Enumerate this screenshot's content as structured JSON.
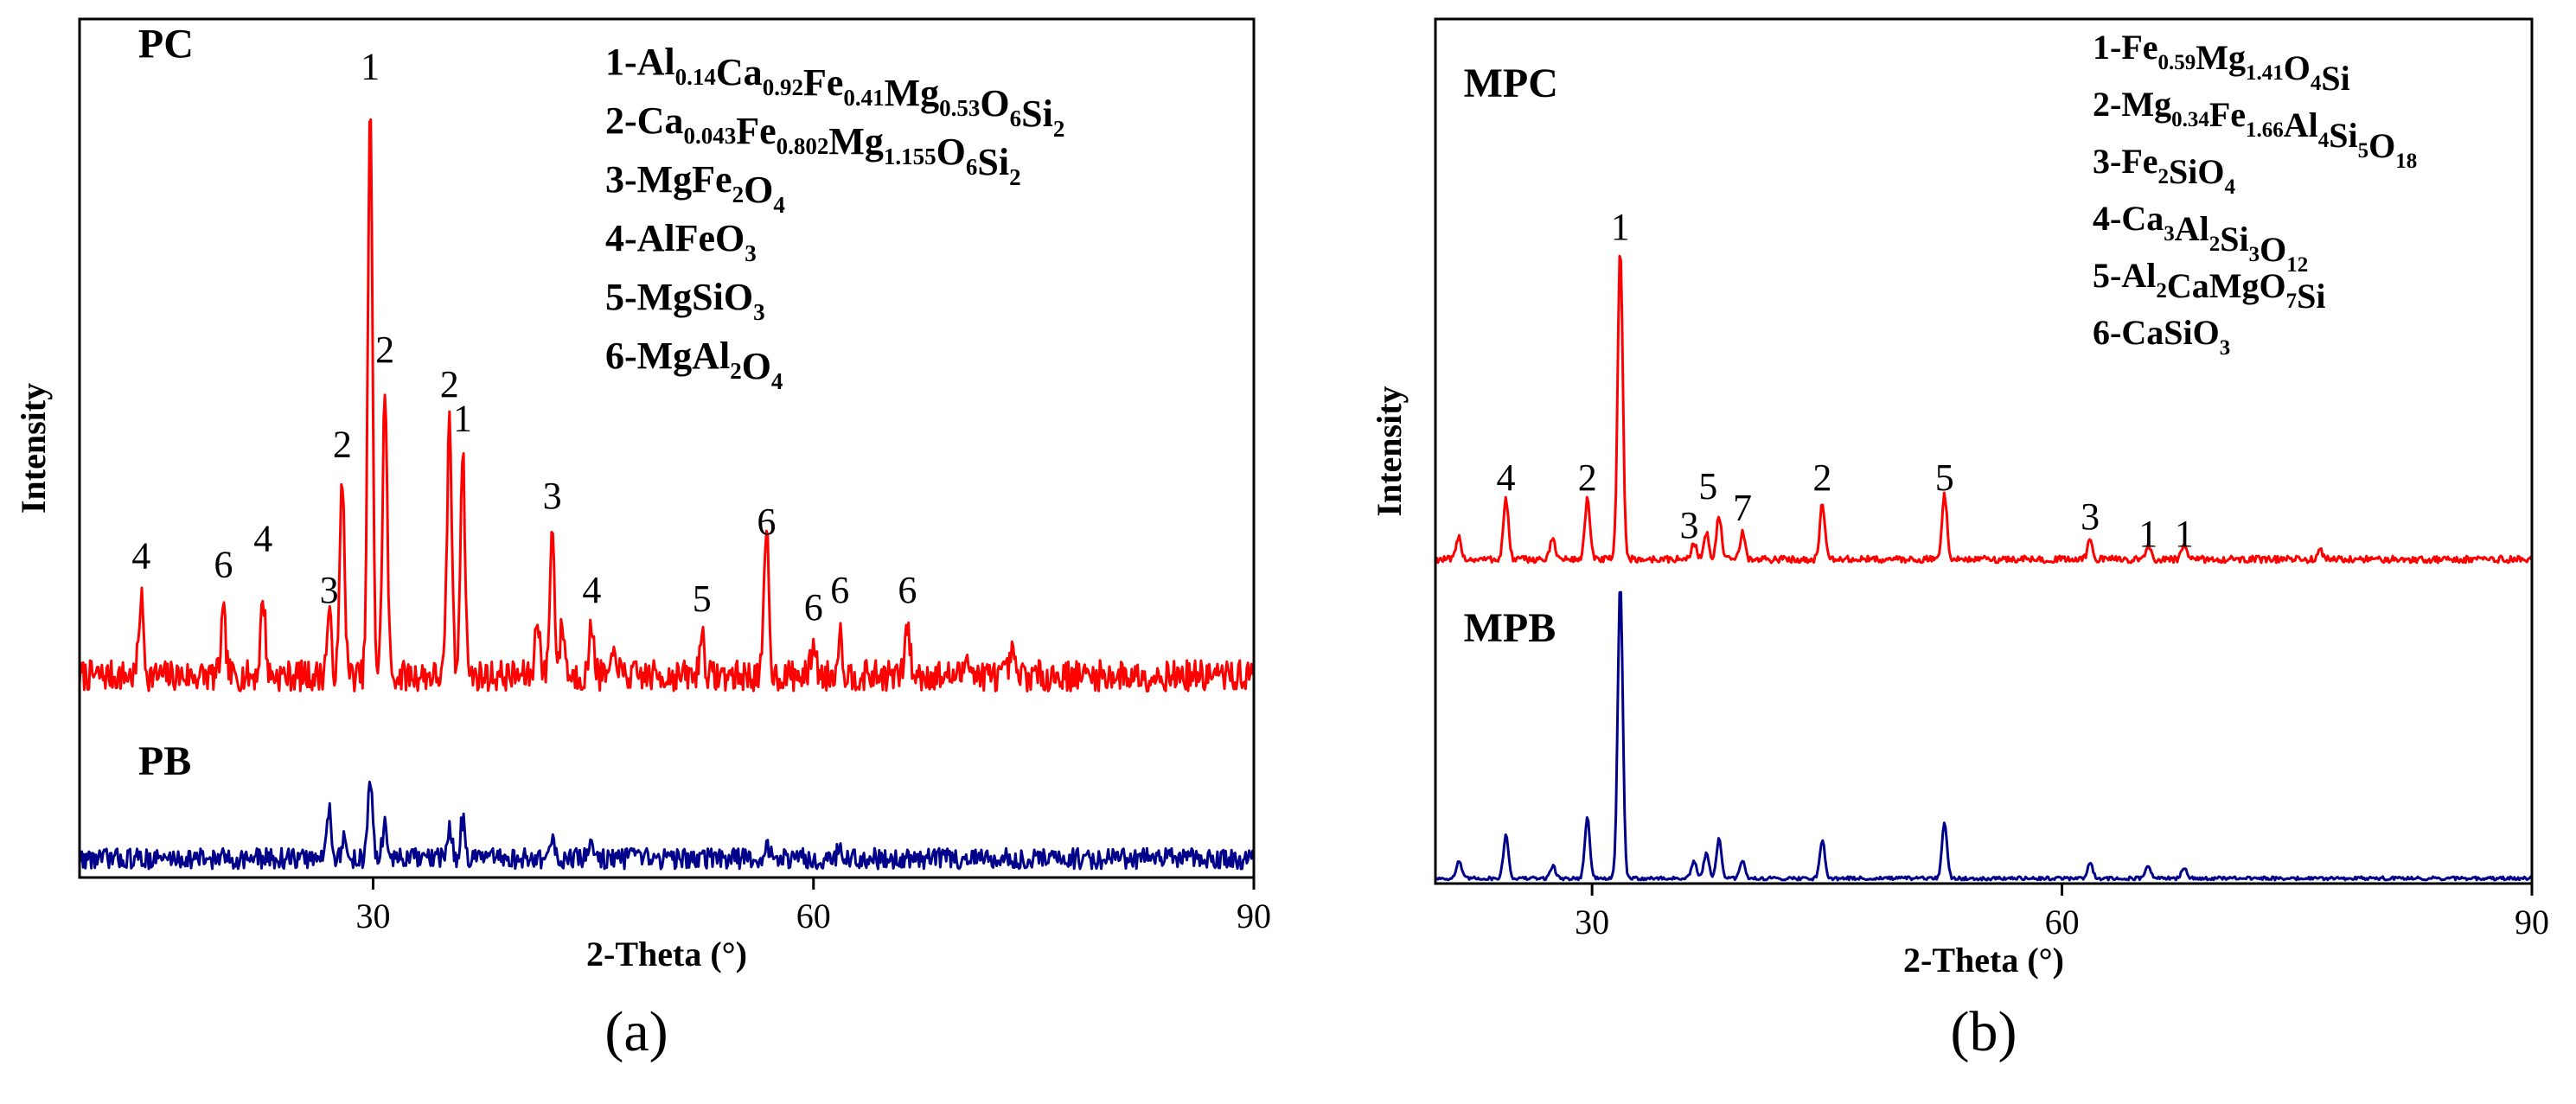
{
  "chart_data": [
    {
      "type": "line",
      "panel_label": "(a)",
      "xlabel": "2-Theta (°)",
      "ylabel": "Intensity",
      "xlim": [
        10,
        90
      ],
      "ylim": [
        0,
        1
      ],
      "xticks": [
        30,
        60,
        90
      ],
      "grid": false,
      "series": [
        {
          "name": "PC",
          "color": "#ff0000",
          "baseline": 0.235,
          "noise": 0.018,
          "peaks": [
            {
              "x": 14.2,
              "h": 0.09
            },
            {
              "x": 19.8,
              "h": 0.07
            },
            {
              "x": 22.5,
              "h": 0.09
            },
            {
              "x": 27.0,
              "h": 0.07
            },
            {
              "x": 27.9,
              "h": 0.23
            },
            {
              "x": 29.8,
              "h": 0.66
            },
            {
              "x": 30.8,
              "h": 0.33
            },
            {
              "x": 35.2,
              "h": 0.3
            },
            {
              "x": 36.1,
              "h": 0.26
            },
            {
              "x": 41.2,
              "h": 0.07
            },
            {
              "x": 42.2,
              "h": 0.17
            },
            {
              "x": 42.9,
              "h": 0.06
            },
            {
              "x": 44.9,
              "h": 0.06
            },
            {
              "x": 46.5,
              "h": 0.03
            },
            {
              "x": 52.4,
              "h": 0.05
            },
            {
              "x": 56.8,
              "h": 0.17
            },
            {
              "x": 60.0,
              "h": 0.04
            },
            {
              "x": 61.8,
              "h": 0.05
            },
            {
              "x": 66.4,
              "h": 0.06
            },
            {
              "x": 70.5,
              "h": 0.03
            },
            {
              "x": 73.5,
              "h": 0.025
            }
          ]
        },
        {
          "name": "PB",
          "color": "#00008b",
          "baseline": 0.022,
          "noise": 0.012,
          "peaks": [
            {
              "x": 27.0,
              "h": 0.06
            },
            {
              "x": 28.0,
              "h": 0.02
            },
            {
              "x": 29.8,
              "h": 0.09
            },
            {
              "x": 30.8,
              "h": 0.04
            },
            {
              "x": 35.2,
              "h": 0.035
            },
            {
              "x": 36.1,
              "h": 0.045
            },
            {
              "x": 42.2,
              "h": 0.02
            },
            {
              "x": 44.9,
              "h": 0.02
            },
            {
              "x": 56.8,
              "h": 0.015
            },
            {
              "x": 61.8,
              "h": 0.012
            }
          ]
        }
      ],
      "curve_labels": [
        {
          "text": "PC",
          "x": 14.0,
          "y": 0.955
        },
        {
          "text": "PB",
          "x": 14.0,
          "y": 0.12
        }
      ],
      "peak_labels": [
        {
          "text": "4",
          "x": 14.2,
          "y": 0.36
        },
        {
          "text": "6",
          "x": 19.8,
          "y": 0.35
        },
        {
          "text": "4",
          "x": 22.5,
          "y": 0.38
        },
        {
          "text": "3",
          "x": 27.0,
          "y": 0.32
        },
        {
          "text": "2",
          "x": 27.9,
          "y": 0.49
        },
        {
          "text": "1",
          "x": 29.8,
          "y": 0.93
        },
        {
          "text": "2",
          "x": 30.8,
          "y": 0.6
        },
        {
          "text": "2",
          "x": 35.2,
          "y": 0.56
        },
        {
          "text": "1",
          "x": 36.1,
          "y": 0.52
        },
        {
          "text": "3",
          "x": 42.2,
          "y": 0.43
        },
        {
          "text": "4",
          "x": 44.9,
          "y": 0.32
        },
        {
          "text": "5",
          "x": 52.4,
          "y": 0.31
        },
        {
          "text": "6",
          "x": 56.8,
          "y": 0.4
        },
        {
          "text": "6",
          "x": 60.0,
          "y": 0.3
        },
        {
          "text": "6",
          "x": 61.8,
          "y": 0.32
        },
        {
          "text": "6",
          "x": 66.4,
          "y": 0.32
        }
      ],
      "legend_position": "top-right",
      "legend": [
        {
          "text": "1-Al0.14Ca0.92Fe0.41Mg0.53O6Si2",
          "parts": [
            [
              "1-Al",
              ""
            ],
            [
              "0.14",
              "s"
            ],
            [
              "Ca",
              ""
            ],
            [
              "0.92",
              "s"
            ],
            [
              "Fe",
              ""
            ],
            [
              "0.41",
              "s"
            ],
            [
              "Mg",
              ""
            ],
            [
              "0.53",
              "s"
            ],
            [
              "O",
              ""
            ],
            [
              "6",
              "s"
            ],
            [
              "Si",
              ""
            ],
            [
              "2",
              "s"
            ]
          ]
        },
        {
          "text": "2-Ca0.043Fe0.802Mg1.155O6Si2",
          "parts": [
            [
              "2-Ca",
              ""
            ],
            [
              "0.043",
              "s"
            ],
            [
              "Fe",
              ""
            ],
            [
              "0.802",
              "s"
            ],
            [
              "Mg",
              ""
            ],
            [
              "1.155",
              "s"
            ],
            [
              "O",
              ""
            ],
            [
              "6",
              "s"
            ],
            [
              "Si",
              ""
            ],
            [
              "2",
              "s"
            ]
          ]
        },
        {
          "text": "3-MgFe2O4",
          "parts": [
            [
              "3-MgFe",
              ""
            ],
            [
              "2",
              "s"
            ],
            [
              "O",
              ""
            ],
            [
              "4",
              "s"
            ]
          ]
        },
        {
          "text": "4-AlFeO3",
          "parts": [
            [
              "4-AlFeO",
              ""
            ],
            [
              "3",
              "s"
            ]
          ]
        },
        {
          "text": "5-MgSiO3",
          "parts": [
            [
              "5-MgSiO",
              ""
            ],
            [
              "3",
              "s"
            ]
          ]
        },
        {
          "text": "6-MgAl2O4",
          "parts": [
            [
              "6-MgAl",
              ""
            ],
            [
              "2",
              "s"
            ],
            [
              "O",
              ""
            ],
            [
              "4",
              "s"
            ]
          ]
        }
      ]
    },
    {
      "type": "line",
      "panel_label": "(b)",
      "xlabel": "2-Theta (°)",
      "ylabel": "Intensity",
      "xlim": [
        20,
        90
      ],
      "ylim": [
        0,
        1
      ],
      "xticks": [
        30,
        60,
        90
      ],
      "grid": false,
      "series": [
        {
          "name": "MPC",
          "color": "#ff0000",
          "baseline": 0.375,
          "noise": 0.004,
          "peaks": [
            {
              "x": 21.5,
              "h": 0.025
            },
            {
              "x": 24.5,
              "h": 0.07
            },
            {
              "x": 27.5,
              "h": 0.025
            },
            {
              "x": 29.7,
              "h": 0.07
            },
            {
              "x": 31.8,
              "h": 0.36
            },
            {
              "x": 36.5,
              "h": 0.02
            },
            {
              "x": 37.3,
              "h": 0.03
            },
            {
              "x": 38.1,
              "h": 0.05
            },
            {
              "x": 39.6,
              "h": 0.03
            },
            {
              "x": 44.7,
              "h": 0.065
            },
            {
              "x": 52.5,
              "h": 0.075
            },
            {
              "x": 61.8,
              "h": 0.025
            },
            {
              "x": 65.5,
              "h": 0.015
            },
            {
              "x": 67.8,
              "h": 0.015
            },
            {
              "x": 76.5,
              "h": 0.01
            }
          ]
        },
        {
          "name": "MPB",
          "color": "#00008b",
          "baseline": 0.006,
          "noise": 0.002,
          "peaks": [
            {
              "x": 21.5,
              "h": 0.02
            },
            {
              "x": 24.5,
              "h": 0.05
            },
            {
              "x": 27.5,
              "h": 0.015
            },
            {
              "x": 29.7,
              "h": 0.07
            },
            {
              "x": 31.8,
              "h": 0.34
            },
            {
              "x": 36.5,
              "h": 0.02
            },
            {
              "x": 37.3,
              "h": 0.03
            },
            {
              "x": 38.1,
              "h": 0.045
            },
            {
              "x": 39.6,
              "h": 0.02
            },
            {
              "x": 44.7,
              "h": 0.045
            },
            {
              "x": 52.5,
              "h": 0.065
            },
            {
              "x": 61.8,
              "h": 0.018
            },
            {
              "x": 65.5,
              "h": 0.015
            },
            {
              "x": 67.8,
              "h": 0.012
            }
          ]
        }
      ],
      "curve_labels": [
        {
          "text": "MPC",
          "x": 21.8,
          "y": 0.91
        },
        {
          "text": "MPB",
          "x": 21.8,
          "y": 0.28
        }
      ],
      "peak_labels": [
        {
          "text": "4",
          "x": 24.5,
          "y": 0.455
        },
        {
          "text": "2",
          "x": 29.7,
          "y": 0.455
        },
        {
          "text": "1",
          "x": 31.8,
          "y": 0.745
        },
        {
          "text": "3",
          "x": 36.2,
          "y": 0.4
        },
        {
          "text": "5",
          "x": 37.4,
          "y": 0.445
        },
        {
          "text": "7",
          "x": 39.6,
          "y": 0.42
        },
        {
          "text": "2",
          "x": 44.7,
          "y": 0.455
        },
        {
          "text": "5",
          "x": 52.5,
          "y": 0.455
        },
        {
          "text": "3",
          "x": 61.8,
          "y": 0.41
        },
        {
          "text": "1",
          "x": 65.5,
          "y": 0.39
        },
        {
          "text": "1",
          "x": 67.8,
          "y": 0.39
        }
      ],
      "legend_position": "top-right",
      "legend": [
        {
          "text": "1-Fe0.59Mg1.41O4Si",
          "parts": [
            [
              "1-Fe",
              ""
            ],
            [
              "0.59",
              "s"
            ],
            [
              "Mg",
              ""
            ],
            [
              "1.41",
              "s"
            ],
            [
              "O",
              ""
            ],
            [
              "4",
              "s"
            ],
            [
              "Si",
              ""
            ]
          ]
        },
        {
          "text": "2-Mg0.34Fe1.66Al4Si5O18",
          "parts": [
            [
              "2-Mg",
              ""
            ],
            [
              "0.34",
              "s"
            ],
            [
              "Fe",
              ""
            ],
            [
              "1.66",
              "s"
            ],
            [
              "Al",
              ""
            ],
            [
              "4",
              "s"
            ],
            [
              "Si",
              ""
            ],
            [
              "5",
              "s"
            ],
            [
              "O",
              ""
            ],
            [
              "18",
              "s"
            ]
          ]
        },
        {
          "text": "3-Fe2SiO4",
          "parts": [
            [
              "3-Fe",
              ""
            ],
            [
              "2",
              "s"
            ],
            [
              "SiO",
              ""
            ],
            [
              "4",
              "s"
            ]
          ]
        },
        {
          "text": "4-Ca3Al2Si3O12",
          "parts": [
            [
              "4-Ca",
              ""
            ],
            [
              "3",
              "s"
            ],
            [
              "Al",
              ""
            ],
            [
              "2",
              "s"
            ],
            [
              "Si",
              ""
            ],
            [
              "3",
              "s"
            ],
            [
              "O",
              ""
            ],
            [
              "12",
              "s"
            ]
          ]
        },
        {
          "text": "5-Al2CaMgO7Si",
          "parts": [
            [
              "5-Al",
              ""
            ],
            [
              "2",
              "s"
            ],
            [
              "CaMgO",
              ""
            ],
            [
              "7",
              "s"
            ],
            [
              "Si",
              ""
            ]
          ]
        },
        {
          "text": "6-CaSiO3",
          "parts": [
            [
              "6-CaSiO",
              ""
            ],
            [
              "3",
              "s"
            ]
          ]
        }
      ]
    }
  ]
}
